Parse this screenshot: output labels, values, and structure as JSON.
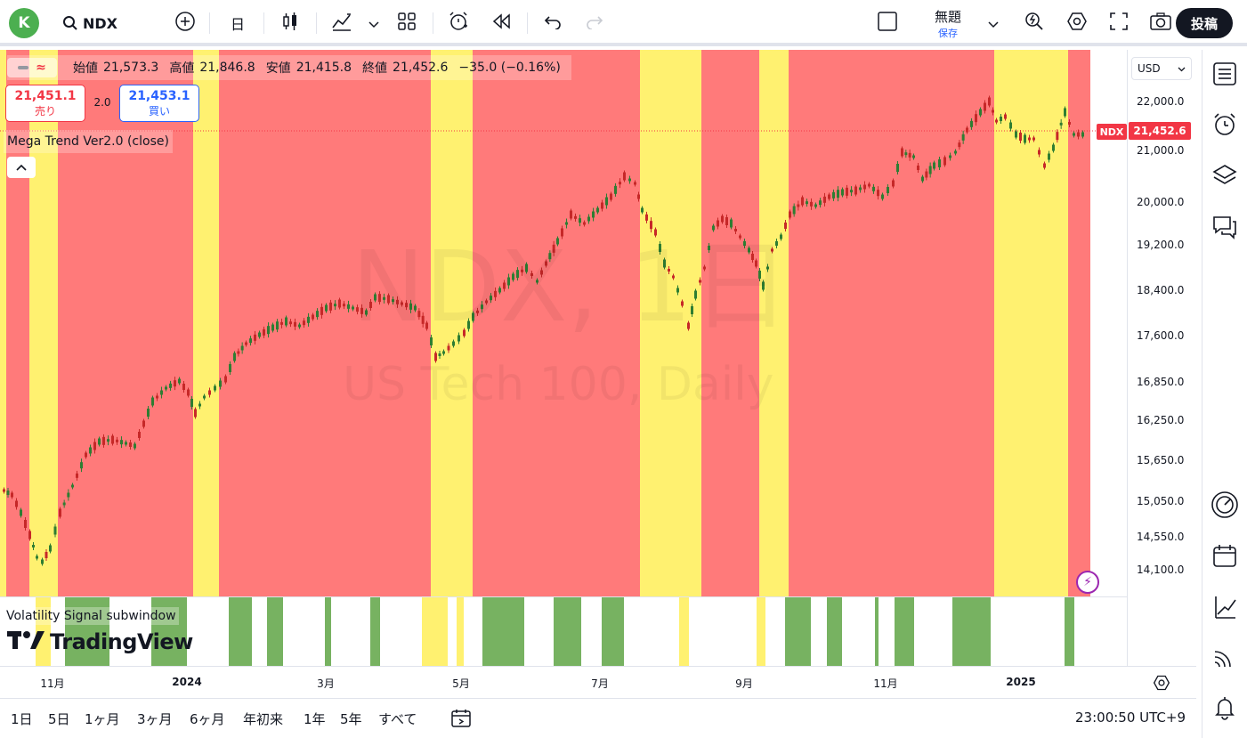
{
  "topbar": {
    "avatar_letter": "K",
    "symbol": "NDX",
    "interval": "日",
    "layout_title": "無題",
    "layout_save": "保存",
    "publish_label": "投稿"
  },
  "legend": {
    "open_label": "始値",
    "open_value": "21,573.3",
    "high_label": "高値",
    "high_value": "21,846.8",
    "low_label": "安値",
    "low_value": "21,415.8",
    "close_label": "終値",
    "close_value": "21,452.6",
    "change": "−35.0 (−0.16%)"
  },
  "trade": {
    "sell_price": "21,451.1",
    "sell_label": "売り",
    "spread": "2.0",
    "buy_price": "21,453.1",
    "buy_label": "買い"
  },
  "indicator": {
    "name": "Mega Trend Ver2.0 (close)"
  },
  "subwindow": {
    "label": "Volatility Signal subwindow"
  },
  "watermark": {
    "line1": "NDX, 1日",
    "line2": "US Tech 100, Daily"
  },
  "price_axis": {
    "currency": "USD",
    "ticks": [
      "22,000.0",
      "21,000.0",
      "20,000.0",
      "19,200.0",
      "18,400.0",
      "17,600.0",
      "16,850.0",
      "16,250.0",
      "15,650.0",
      "15,050.0",
      "14,550.0",
      "14,100.0"
    ],
    "last_price": "21,452.6",
    "symbol_tag": "NDX"
  },
  "time_axis": {
    "ticks": [
      {
        "label": "11月",
        "bold": false
      },
      {
        "label": "2024",
        "bold": true
      },
      {
        "label": "3月",
        "bold": false
      },
      {
        "label": "5月",
        "bold": false
      },
      {
        "label": "7月",
        "bold": false
      },
      {
        "label": "9月",
        "bold": false
      },
      {
        "label": "11月",
        "bold": false
      },
      {
        "label": "2025",
        "bold": true
      }
    ]
  },
  "bottom_bar": {
    "ranges": [
      "1日",
      "5日",
      "1ヶ月",
      "3ヶ月",
      "6ヶ月",
      "年初来",
      "1年",
      "5年",
      "すべて"
    ],
    "clock": "23:00:50 UTC+9"
  },
  "tradingview_logo": "TradingView",
  "colors": {
    "bear_zone": "#ff7a7a",
    "bull_zone": "#fff170",
    "candle_up": "#2e7d32",
    "candle_down": "#c62828",
    "signal_green": "#77b261",
    "signal_yellow": "#fff170",
    "accent": "#2962ff",
    "last_price": "#f23645"
  }
}
